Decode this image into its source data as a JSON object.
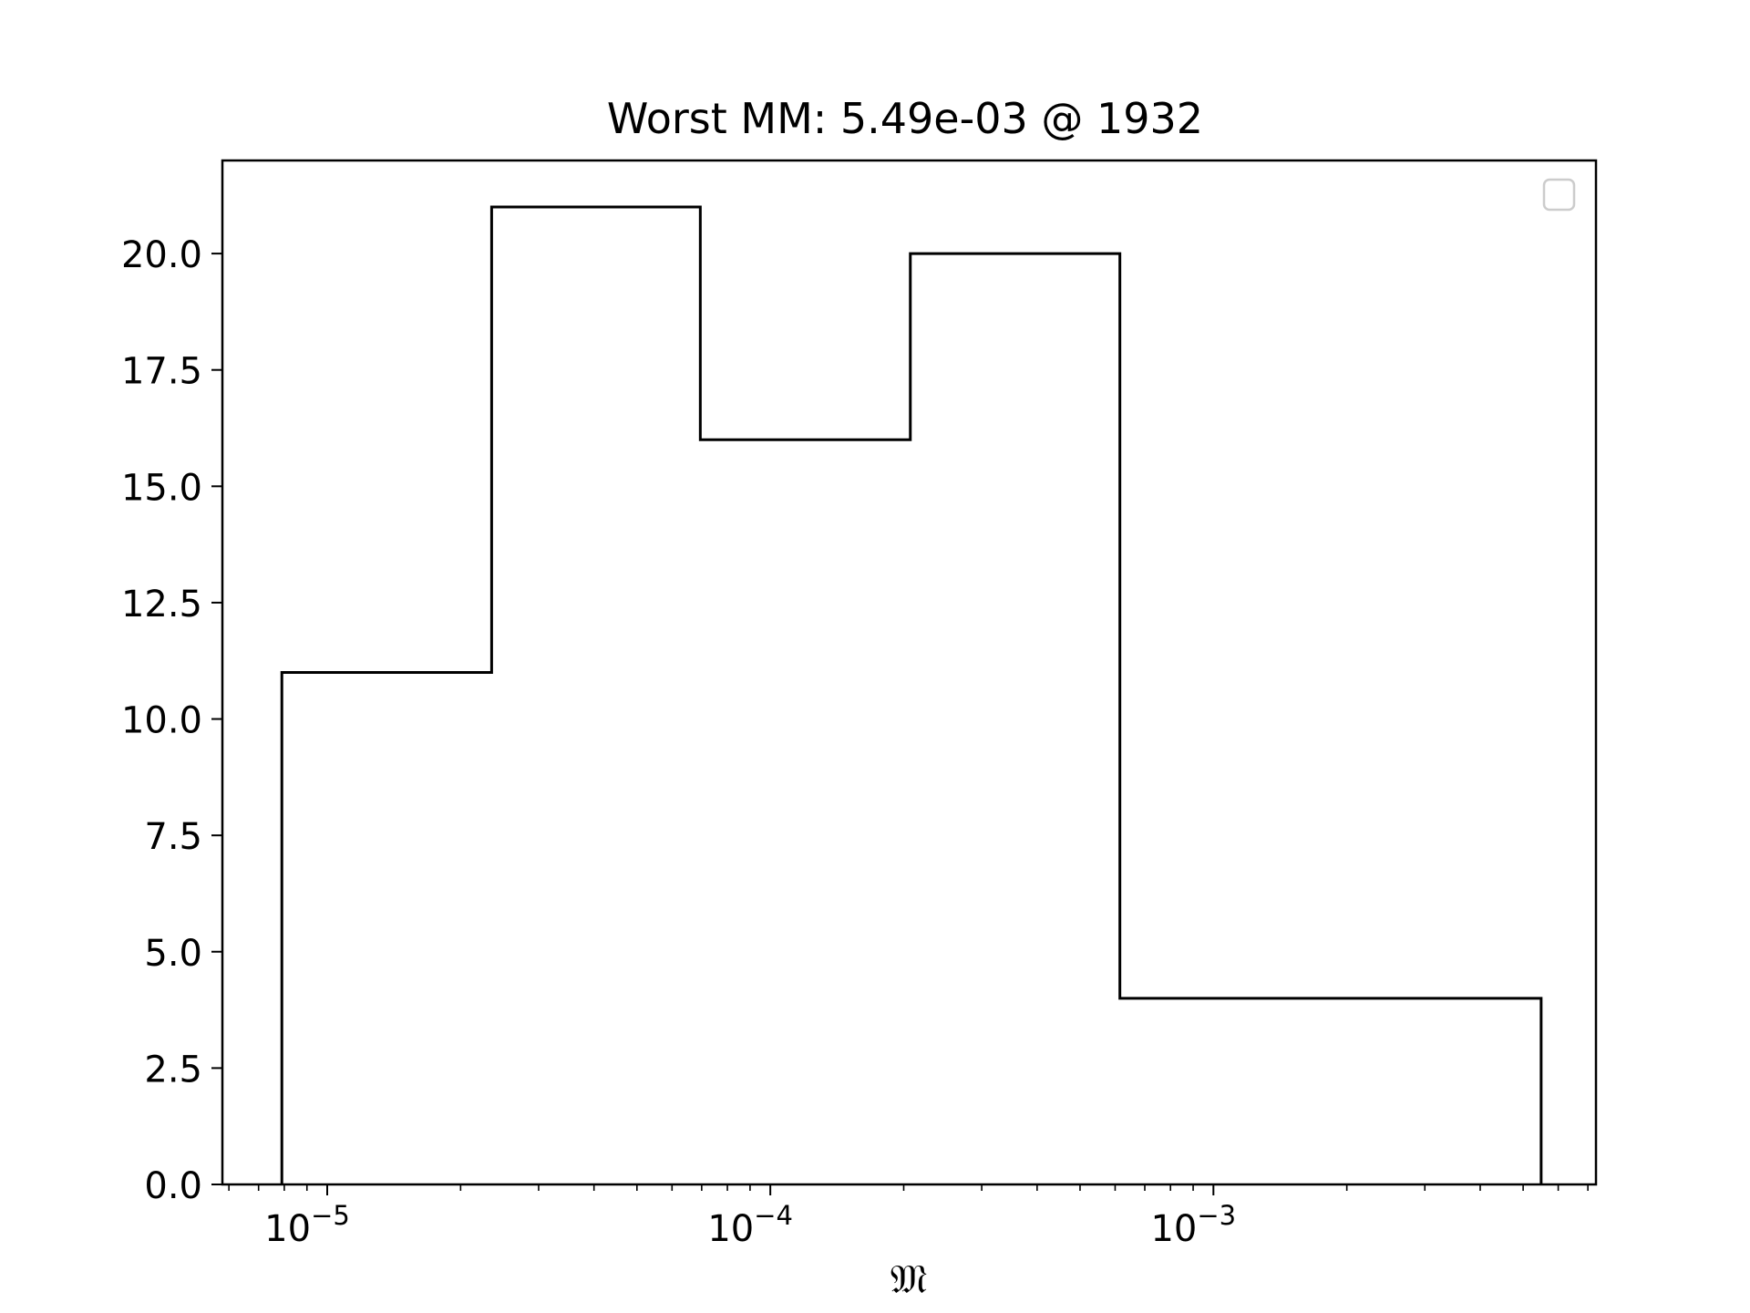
{
  "chart_data": {
    "type": "histogram",
    "title": "Worst MM: 5.49e-03 @ 1932",
    "xlabel": "𝔐",
    "ylabel": "",
    "xscale": "log",
    "xlim": [
      5.8e-06,
      0.0073
    ],
    "ylim": [
      0,
      22
    ],
    "grid": false,
    "legend": {
      "placement": "top-right",
      "entries": []
    },
    "bin_edges": [
      7.9e-06,
      2.35e-05,
      6.95e-05,
      0.000207,
      0.000615,
      0.00549
    ],
    "counts": [
      11,
      21,
      16,
      20,
      4
    ],
    "x_ticks": [
      {
        "value": 1e-05,
        "base": "10",
        "exp": "−5"
      },
      {
        "value": 0.0001,
        "base": "10",
        "exp": "−4"
      },
      {
        "value": 0.001,
        "base": "10",
        "exp": "−3"
      }
    ],
    "y_ticks": [
      0,
      2.5,
      5,
      7.5,
      10,
      12.5,
      15,
      17.5,
      20
    ],
    "y_tick_labels": [
      "0.0",
      "2.5",
      "5.0",
      "7.5",
      "10.0",
      "12.5",
      "15.0",
      "17.5",
      "20.0"
    ],
    "colors": {
      "line": "#000000",
      "legend_border": "#cccccc"
    }
  }
}
